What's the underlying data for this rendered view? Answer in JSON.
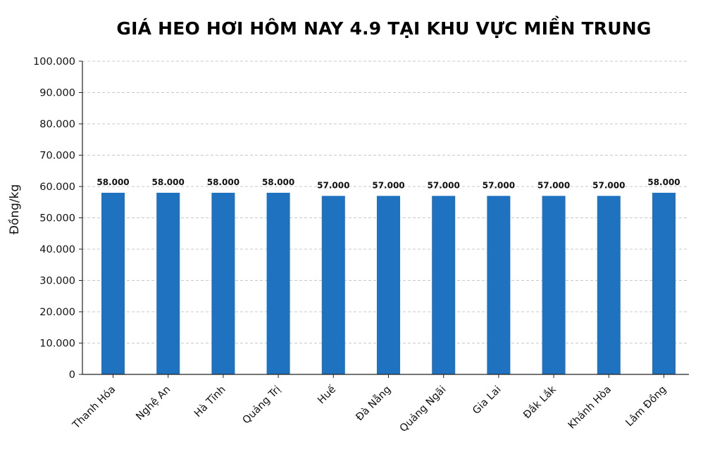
{
  "chart_data": {
    "type": "bar",
    "title": "GIÁ HEO HƠI HÔM NAY 4.9 TẠI KHU VỰC MIỀN TRUNG",
    "xlabel": "",
    "ylabel": "Đồng/kg",
    "ylim": [
      0,
      100000
    ],
    "yticks": [
      0,
      10000,
      20000,
      30000,
      40000,
      50000,
      60000,
      70000,
      80000,
      90000,
      100000
    ],
    "ytick_labels": [
      "0",
      "10.000",
      "20.000",
      "30.000",
      "40.000",
      "50.000",
      "60.000",
      "70.000",
      "80.000",
      "90.000",
      "100.000"
    ],
    "categories": [
      "Thanh Hóa",
      "Nghệ An",
      "Hà Tĩnh",
      "Quảng Trị",
      "Huế",
      "Đà Nẵng",
      "Quảng Ngãi",
      "Gia Lai",
      "Đắk Lắk",
      "Khánh Hòa",
      "Lâm Đồng"
    ],
    "values": [
      58000,
      58000,
      58000,
      58000,
      57000,
      57000,
      57000,
      57000,
      57000,
      57000,
      58000
    ],
    "data_labels": [
      "58.000",
      "58.000",
      "58.000",
      "58.000",
      "57.000",
      "57.000",
      "57.000",
      "57.000",
      "57.000",
      "57.000",
      "58.000"
    ],
    "grid": "horizontal dashed",
    "bar_color": "#1f72bf"
  }
}
